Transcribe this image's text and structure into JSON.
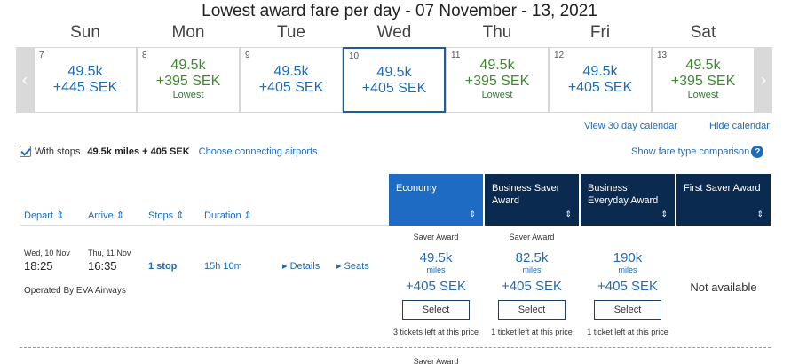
{
  "title": "Lowest award fare per day - 07 November - 13, 2021",
  "calendar": {
    "days": [
      {
        "name": "Sun",
        "date": "7",
        "miles": "49.5k",
        "price": "+445 SEK",
        "note": "",
        "color": "#1e6bb8",
        "selected": false
      },
      {
        "name": "Mon",
        "date": "8",
        "miles": "49.5k",
        "price": "+395 SEK",
        "note": "Lowest",
        "color": "#3d8b2f",
        "selected": false
      },
      {
        "name": "Tue",
        "date": "9",
        "miles": "49.5k",
        "price": "+405 SEK",
        "note": "",
        "color": "#1e6bb8",
        "selected": false
      },
      {
        "name": "Wed",
        "date": "10",
        "miles": "49.5k",
        "price": "+405 SEK",
        "note": "",
        "color": "#1e6bb8",
        "selected": true
      },
      {
        "name": "Thu",
        "date": "11",
        "miles": "49.5k",
        "price": "+395 SEK",
        "note": "Lowest",
        "color": "#3d8b2f",
        "selected": false
      },
      {
        "name": "Fri",
        "date": "12",
        "miles": "49.5k",
        "price": "+405 SEK",
        "note": "",
        "color": "#1e6bb8",
        "selected": false
      },
      {
        "name": "Sat",
        "date": "13",
        "miles": "49.5k",
        "price": "+395 SEK",
        "note": "Lowest",
        "color": "#3d8b2f",
        "selected": false
      }
    ],
    "prev_icon": "chevron-left-icon",
    "next_icon": "chevron-right-icon",
    "view_30_day": "View 30 day calendar",
    "hide_calendar": "Hide calendar"
  },
  "filters": {
    "with_stops_label": "With stops",
    "with_stops_checked": true,
    "with_stops_miles": "49.5k miles + 405 SEK",
    "choose_connecting": "Choose connecting airports",
    "show_fare_comparison": "Show fare type comparison",
    "help_glyph": "?"
  },
  "sort_headers": {
    "depart": "Depart ⇕",
    "arrive": "Arrive ⇕",
    "stops": "Stops ⇕",
    "duration": "Duration ⇕"
  },
  "cabins": [
    {
      "label": "Economy",
      "active": true
    },
    {
      "label": "Business Saver Award",
      "active": false
    },
    {
      "label": "Business Everyday Award",
      "active": false
    },
    {
      "label": "First Saver Award",
      "active": false
    }
  ],
  "cabin_sort_glyph": "⇕",
  "flight": {
    "depart_date": "Wed, 10 Nov",
    "depart_time": "18:25",
    "arrive_date": "Thu, 11 Nov",
    "arrive_time": "16:35",
    "stops": "1 stop",
    "duration": "15h 10m",
    "details": "▸ Details",
    "seats": "▸ Seats",
    "operated_by": "Operated By EVA Airways",
    "fares": [
      {
        "type": "Saver Award",
        "miles": "49.5k",
        "unit": "miles",
        "price": "+405 SEK",
        "select": "Select",
        "tickets": "3 tickets left at this price"
      },
      {
        "type": "Saver Award",
        "miles": "82.5k",
        "unit": "miles",
        "price": "+405 SEK",
        "select": "Select",
        "tickets": "1 ticket left at this price"
      },
      {
        "type": "",
        "miles": "190k",
        "unit": "miles",
        "price": "+405 SEK",
        "select": "Select",
        "tickets": "1 ticket left at this price"
      }
    ],
    "first_not_available": "Not available"
  },
  "next_row": {
    "saver_award": "Saver Award"
  }
}
